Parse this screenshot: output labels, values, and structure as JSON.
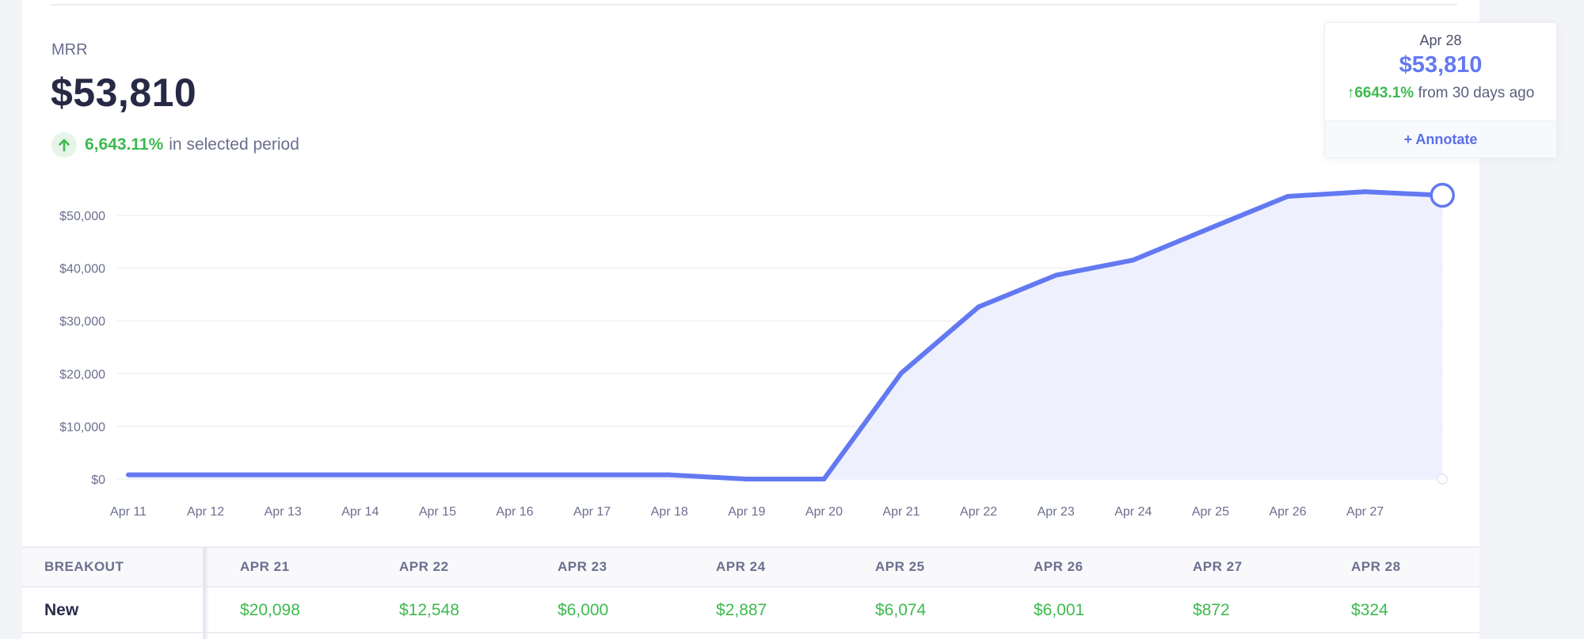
{
  "metric": {
    "label": "MRR",
    "value": "$53,810",
    "change_pct": "6,643.11%",
    "change_text": "in selected period"
  },
  "tooltip": {
    "date": "Apr 28",
    "value": "$53,810",
    "change_pct": "6643.1%",
    "change_text": "from 30 days ago",
    "annotate_label": "+ Annotate"
  },
  "colors": {
    "line": "#6379f2",
    "area": "#eef0fd",
    "positive": "#3dba4e"
  },
  "chart_data": {
    "type": "area",
    "x": [
      "Apr 11",
      "Apr 12",
      "Apr 13",
      "Apr 14",
      "Apr 15",
      "Apr 16",
      "Apr 17",
      "Apr 18",
      "Apr 19",
      "Apr 20",
      "Apr 21",
      "Apr 22",
      "Apr 23",
      "Apr 24",
      "Apr 25",
      "Apr 26",
      "Apr 27",
      "Apr 28"
    ],
    "x_tick_labels": [
      "Apr 11",
      "Apr 12",
      "Apr 13",
      "Apr 14",
      "Apr 15",
      "Apr 16",
      "Apr 17",
      "Apr 18",
      "Apr 19",
      "Apr 20",
      "Apr 21",
      "Apr 22",
      "Apr 23",
      "Apr 24",
      "Apr 25",
      "Apr 26",
      "Apr 27"
    ],
    "series": [
      {
        "values": [
          798,
          798,
          798,
          798,
          798,
          798,
          798,
          798,
          0,
          0,
          20098,
          32646,
          38646,
          41533,
          47607,
          53608,
          54480,
          53810
        ]
      }
    ],
    "y_ticks": [
      "$0",
      "$10,000",
      "$20,000",
      "$30,000",
      "$40,000",
      "$50,000"
    ],
    "ylim": [
      0,
      50000
    ],
    "grid": true,
    "highlighted_point": "Apr 28"
  },
  "breakout": {
    "header_label": "BREAKOUT",
    "columns": [
      "APR 21",
      "APR 22",
      "APR 23",
      "APR 24",
      "APR 25",
      "APR 26",
      "APR 27",
      "APR 28"
    ],
    "rows": [
      {
        "label": "New",
        "values": [
          "$20,098",
          "$12,548",
          "$6,000",
          "$2,887",
          "$6,074",
          "$6,001",
          "$872",
          "$324"
        ]
      }
    ]
  }
}
